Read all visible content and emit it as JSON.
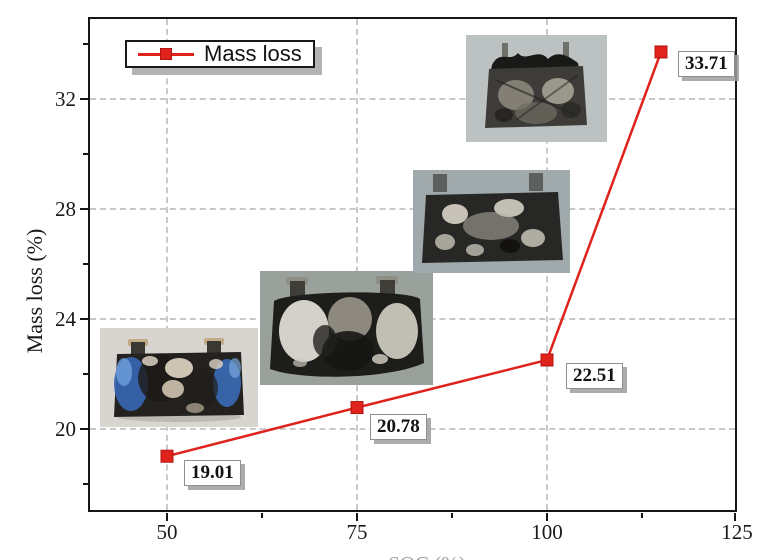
{
  "chart_data": {
    "type": "line",
    "title": "",
    "xlabel": "SOC (%)",
    "xlabel_note": "x-axis title is cropped at the bottom edge of the screenshot; only a faint top sliver of the text is visible",
    "ylabel": "Mass loss (%)",
    "legend_entries": [
      "Mass loss"
    ],
    "legend_position": "top-left",
    "grid": "dashed",
    "marker": "filled-square",
    "line_color": "#e0221c",
    "grid_color": "#c9c9c9",
    "xlim": [
      39.5,
      125
    ],
    "ylim": [
      17,
      35
    ],
    "x_ticks": [
      50,
      75,
      100,
      125
    ],
    "x_tick_labels": [
      "50",
      "75",
      "100",
      "125"
    ],
    "y_ticks": [
      20,
      24,
      28,
      32
    ],
    "y_tick_labels": [
      "20",
      "24",
      "28",
      "32"
    ],
    "series": [
      {
        "name": "Mass loss",
        "x": [
          50,
          75,
          100,
          115
        ],
        "y": [
          19.01,
          20.78,
          22.51,
          33.71
        ],
        "point_labels": [
          "19.01",
          "20.78",
          "22.51",
          "33.71"
        ]
      }
    ]
  },
  "legend": {
    "label": "Mass loss"
  },
  "axis": {
    "ylabel": "Mass loss (%)",
    "xlabel_partial": "SOC (%)"
  },
  "photos": [
    {
      "name": "battery-photo-1",
      "description": "burned prismatic battery cell with blue casing remnants and white ash, near data point 50 / 19.01"
    },
    {
      "name": "battery-photo-2",
      "description": "swollen burned battery cell with large white ash patches, near data point 75 / 20.78"
    },
    {
      "name": "battery-photo-3",
      "description": "burned battery cell with scattered white deposits, near data point 100 / 22.51"
    },
    {
      "name": "battery-photo-4",
      "description": "severely ruptured, charred battery cell with torn top, near data point 115 / 33.71"
    }
  ]
}
